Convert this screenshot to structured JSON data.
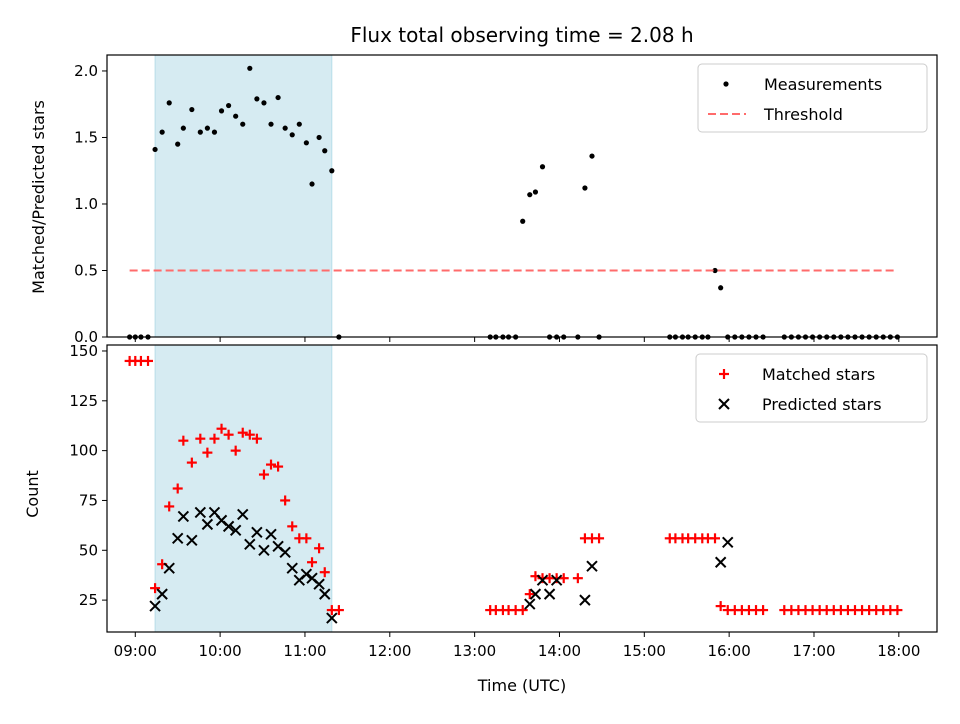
{
  "chart_data": [
    {
      "type": "scatter",
      "title": "Flux total observing time = 2.08 h",
      "xlabel": "",
      "ylabel": "Matched/Predicted stars",
      "ylim": [
        0,
        2.12
      ],
      "xlim": [
        "08:40",
        "18:27"
      ],
      "yticks": [
        "0.0",
        "0.5",
        "1.0",
        "1.5",
        "2.0"
      ],
      "shaded_span": [
        "09:14",
        "11:19"
      ],
      "shaded_color": "#add8e6",
      "legend_position": "upper right",
      "grid": false,
      "series": [
        {
          "name": "Measurements",
          "marker": "dot",
          "color": "#000000",
          "x": [
            "08:56",
            "09:00",
            "09:04",
            "09:09",
            "09:14",
            "09:19",
            "09:24",
            "09:30",
            "09:34",
            "09:40",
            "09:46",
            "09:51",
            "09:56",
            "10:01",
            "10:06",
            "10:11",
            "10:16",
            "10:21",
            "10:26",
            "10:31",
            "10:36",
            "10:41",
            "10:46",
            "10:51",
            "10:56",
            "11:01",
            "11:05",
            "11:10",
            "11:14",
            "11:19",
            "11:24",
            "13:11",
            "13:15",
            "13:20",
            "13:24",
            "13:29",
            "13:34",
            "13:39",
            "13:43",
            "13:48",
            "13:53",
            "13:58",
            "14:03",
            "14:13",
            "14:18",
            "14:23",
            "14:28",
            "15:18",
            "15:22",
            "15:27",
            "15:31",
            "15:36",
            "15:41",
            "15:45",
            "15:50",
            "15:54",
            "15:59",
            "16:04",
            "16:09",
            "16:14",
            "16:19",
            "16:24",
            "16:39",
            "16:44",
            "16:49",
            "16:54",
            "16:59",
            "17:04",
            "17:09",
            "17:14",
            "17:19",
            "17:24",
            "17:29",
            "17:34",
            "17:39",
            "17:44",
            "17:49",
            "17:54",
            "17:59"
          ],
          "y": [
            0,
            0,
            0,
            0,
            1.41,
            1.54,
            1.76,
            1.45,
            1.57,
            1.71,
            1.54,
            1.57,
            1.54,
            1.7,
            1.74,
            1.66,
            1.6,
            2.02,
            1.79,
            1.76,
            1.6,
            1.8,
            1.57,
            1.52,
            1.6,
            1.46,
            1.15,
            1.5,
            1.4,
            1.25,
            0,
            0,
            0,
            0,
            0,
            0,
            0.87,
            1.07,
            1.09,
            1.28,
            0,
            0,
            0,
            0,
            1.12,
            1.36,
            0,
            0,
            0,
            0,
            0,
            0,
            0,
            0,
            0.5,
            0.37,
            0,
            0,
            0,
            0,
            0,
            0,
            0,
            0,
            0,
            0,
            0,
            0,
            0,
            0,
            0,
            0,
            0,
            0,
            0,
            0,
            0,
            0,
            0
          ]
        },
        {
          "name": "Threshold",
          "style": "dashed",
          "color": "#ff6b6b",
          "x": [
            "08:56",
            "17:59"
          ],
          "y": [
            0.5,
            0.5
          ]
        }
      ]
    },
    {
      "type": "scatter",
      "title": "",
      "xlabel": "Time (UTC)",
      "ylabel": "Count",
      "ylim": [
        9,
        153
      ],
      "xlim": [
        "08:40",
        "18:27"
      ],
      "yticks": [
        "25",
        "50",
        "75",
        "100",
        "125",
        "150"
      ],
      "xticks": [
        "09:00",
        "10:00",
        "11:00",
        "12:00",
        "13:00",
        "14:00",
        "15:00",
        "16:00",
        "17:00",
        "18:00"
      ],
      "shaded_span": [
        "09:14",
        "11:19"
      ],
      "shaded_color": "#add8e6",
      "legend_position": "upper right",
      "grid": false,
      "series": [
        {
          "name": "Matched stars",
          "marker": "plus",
          "color": "#ff0000",
          "x": [
            "08:56",
            "09:00",
            "09:04",
            "09:09",
            "09:14",
            "09:19",
            "09:24",
            "09:30",
            "09:34",
            "09:40",
            "09:46",
            "09:51",
            "09:56",
            "10:01",
            "10:06",
            "10:11",
            "10:16",
            "10:21",
            "10:26",
            "10:31",
            "10:36",
            "10:41",
            "10:46",
            "10:51",
            "10:56",
            "11:01",
            "11:05",
            "11:10",
            "11:14",
            "11:19",
            "11:24",
            "13:11",
            "13:15",
            "13:20",
            "13:24",
            "13:29",
            "13:34",
            "13:39",
            "13:43",
            "13:48",
            "13:53",
            "13:58",
            "14:03",
            "14:13",
            "14:18",
            "14:23",
            "14:28",
            "15:18",
            "15:22",
            "15:27",
            "15:31",
            "15:36",
            "15:41",
            "15:45",
            "15:50",
            "15:54",
            "15:59",
            "16:04",
            "16:09",
            "16:14",
            "16:19",
            "16:24",
            "16:39",
            "16:44",
            "16:49",
            "16:54",
            "16:59",
            "17:04",
            "17:09",
            "17:14",
            "17:19",
            "17:24",
            "17:29",
            "17:34",
            "17:39",
            "17:44",
            "17:49",
            "17:54",
            "17:59"
          ],
          "y": [
            145,
            145,
            145,
            145,
            31,
            43,
            72,
            81,
            105,
            94,
            106,
            99,
            106,
            111,
            108,
            100,
            109,
            108,
            106,
            88,
            93,
            92,
            75,
            62,
            56,
            56,
            44,
            51,
            39,
            20,
            20,
            20,
            20,
            20,
            20,
            20,
            20,
            28,
            37,
            36,
            36,
            36,
            36,
            36,
            56,
            56,
            56,
            56,
            56,
            56,
            56,
            56,
            56,
            56,
            56,
            22,
            20,
            20,
            20,
            20,
            20,
            20,
            20,
            20,
            20,
            20,
            20,
            20,
            20,
            20,
            20,
            20,
            20,
            20,
            20,
            20,
            20,
            20,
            20
          ]
        },
        {
          "name": "Predicted stars",
          "marker": "x",
          "color": "#000000",
          "x": [
            "09:14",
            "09:19",
            "09:24",
            "09:30",
            "09:34",
            "09:40",
            "09:46",
            "09:51",
            "09:56",
            "10:01",
            "10:06",
            "10:11",
            "10:16",
            "10:21",
            "10:26",
            "10:31",
            "10:36",
            "10:41",
            "10:46",
            "10:51",
            "10:56",
            "11:01",
            "11:05",
            "11:10",
            "11:14",
            "11:19",
            "13:39",
            "13:43",
            "13:48",
            "13:53",
            "13:58",
            "14:18",
            "14:23",
            "15:54",
            "15:59"
          ],
          "y": [
            22,
            28,
            41,
            56,
            67,
            55,
            69,
            63,
            69,
            65,
            62,
            60,
            68,
            53,
            59,
            50,
            58,
            52,
            49,
            41,
            35,
            38,
            36,
            33,
            28,
            16,
            23,
            28,
            35,
            28,
            35,
            25,
            42,
            44,
            54
          ]
        }
      ]
    }
  ]
}
